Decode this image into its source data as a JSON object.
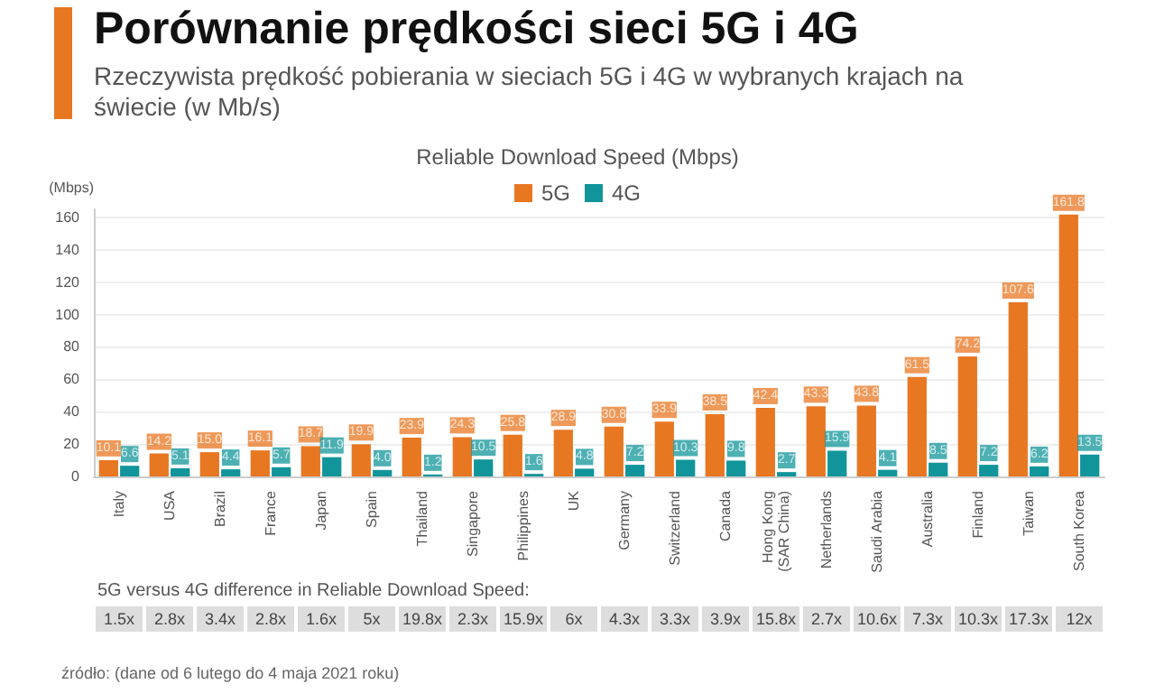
{
  "chart_data": {
    "type": "bar",
    "title": "Porównanie prędkości sieci 5G i 4G",
    "subtitle": "Rzeczywista prędkość pobierania w sieciach 5G i 4G w wybranych krajach na świecie (w Mb/s)",
    "ylabel": "(Mbps)",
    "categories": [
      "Italy",
      "USA",
      "Brazil",
      "France",
      "Japan",
      "Spain",
      "Thailand",
      "Singapore",
      "Philippines",
      "UK",
      "Germany",
      "Switzerland",
      "Canada",
      "Hong Kong\n(SAR China)",
      "Netherlands",
      "Saudi Arabia",
      "Australia",
      "Finland",
      "Taiwan",
      "South Korea"
    ],
    "series": [
      {
        "name": "5G",
        "color": "#e87722",
        "values": [
          10.1,
          14.2,
          15.0,
          16.1,
          18.7,
          19.9,
          23.9,
          24.3,
          25.8,
          28.9,
          30.8,
          33.9,
          38.5,
          42.4,
          43.3,
          43.8,
          61.5,
          74.2,
          107.6,
          161.8
        ],
        "value_labels": [
          "10.1",
          "14.2",
          "15.0",
          "16.1",
          "18.7",
          "19.9",
          "23.9",
          "24.3",
          "25.8",
          "28.9",
          "30.8",
          "33.9",
          "38.5",
          "42.4",
          "43.3",
          "43.8",
          "61.5",
          "74.2",
          "107.6",
          "161.8"
        ]
      },
      {
        "name": "4G",
        "color": "#11959a",
        "values": [
          6.6,
          5.1,
          4.4,
          5.7,
          11.9,
          4.0,
          1.2,
          10.5,
          1.6,
          4.8,
          7.2,
          10.3,
          9.8,
          2.7,
          15.9,
          4.1,
          8.5,
          7.2,
          6.2,
          13.5
        ],
        "value_labels": [
          "6.6",
          "5.1",
          "4.4",
          "5.7",
          "11.9",
          "4.0",
          "1.2",
          "10.5",
          "1.6",
          "4.8",
          "7.2",
          "10.3",
          "9.8",
          "2.7",
          "15.9",
          "4.1",
          "8.5",
          "7.2",
          "6.2",
          "13.5"
        ]
      }
    ],
    "ylim": [
      0,
      165
    ],
    "yticks": [
      0,
      20,
      40,
      60,
      80,
      100,
      120,
      140,
      160
    ],
    "grid": "y",
    "legend": "top",
    "annotations": [
      "Reliable Download Speed (Mbps)",
      "5G versus 4G difference in Reliable Download Speed:",
      "1.5x",
      "2.8x",
      "3.4x",
      "2.8x",
      "1.6x",
      "5x",
      "19.8x",
      "2.3x",
      "15.9x",
      "6x",
      "4.3x",
      "3.3x",
      "3.9x",
      "15.8x",
      "2.7x",
      "10.6x",
      "7.3x",
      "10.3x",
      "17.3x",
      "12x",
      "źródło: (dane od 6 lutego do 4 maja 2021 roku)"
    ]
  }
}
